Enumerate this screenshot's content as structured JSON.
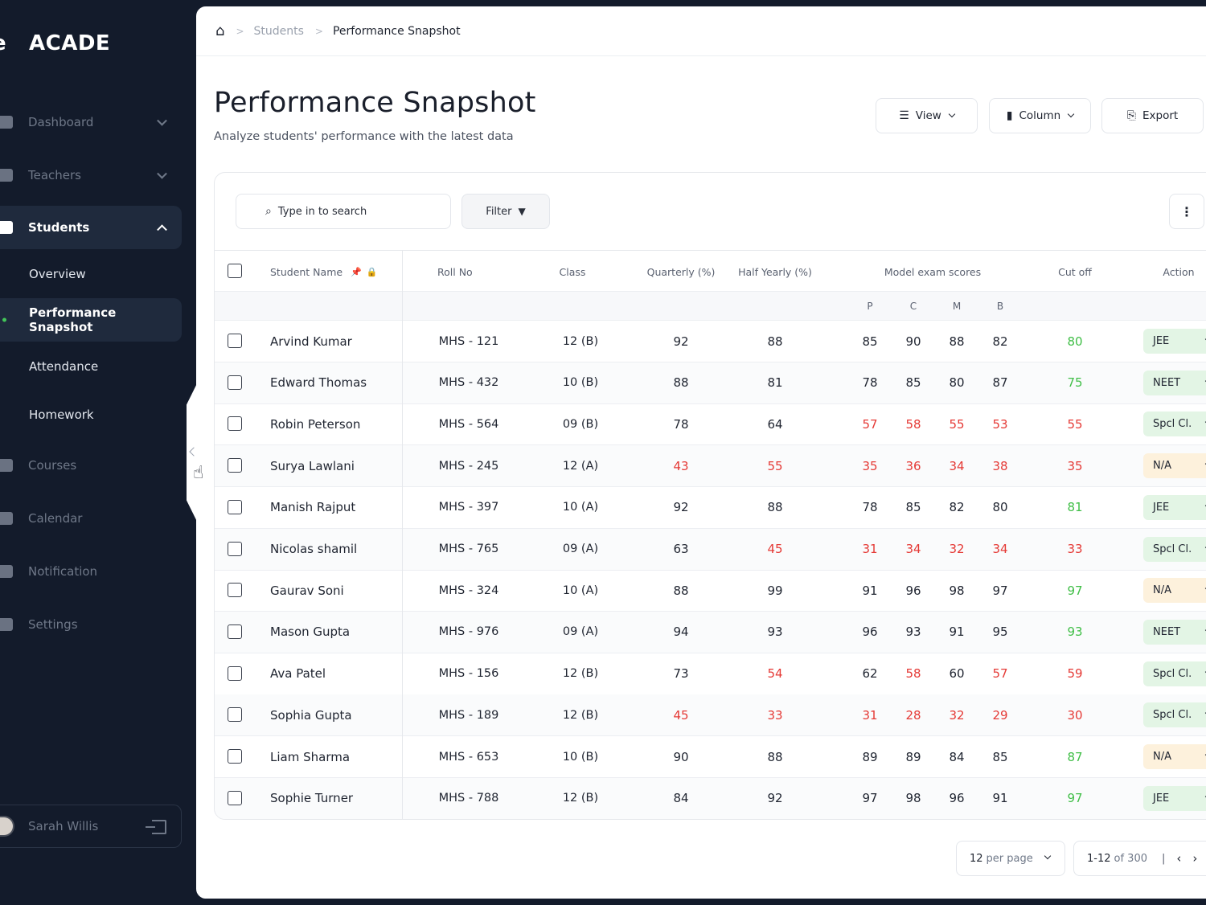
{
  "sidebar": {
    "logo_mark": "e",
    "logo_text": "ACADE",
    "nav": [
      {
        "label": "Dashboard",
        "icon": "dashboard-icon"
      },
      {
        "label": "Teachers",
        "icon": "teachers-icon"
      },
      {
        "label": "Students",
        "icon": "graduation-cap-icon"
      },
      {
        "label": "Courses",
        "icon": "courses-icon"
      },
      {
        "label": "Calendar",
        "icon": "calendar-icon"
      },
      {
        "label": "Notification",
        "icon": "bell-icon"
      },
      {
        "label": "Settings",
        "icon": "gear-icon"
      }
    ],
    "students_sub": [
      "Overview",
      "Performance Snapshot",
      "Attendance",
      "Homework"
    ],
    "user": {
      "name": "Sarah Willis"
    }
  },
  "breadcrumb": {
    "home_icon": "home-icon",
    "parent": "Students",
    "current": "Performance Snapshot"
  },
  "header": {
    "title": "Performance Snapshot",
    "subtitle": "Analyze students' performance with the latest data",
    "view_label": "View",
    "column_label": "Column",
    "export_label": "Export"
  },
  "toolbar": {
    "search_placeholder": "Type in to search",
    "filter_label": "Filter"
  },
  "table": {
    "columns": {
      "name": "Student Name",
      "roll": "Roll No",
      "class": "Class",
      "quarterly": "Quarterly (%)",
      "halfyearly": "Half Yearly (%)",
      "model": "Model exam scores",
      "cutoff": "Cut off",
      "action": "Action"
    },
    "sub_columns": [
      "P",
      "C",
      "M",
      "B"
    ],
    "rows": [
      {
        "name": "Arvind Kumar",
        "roll": "MHS - 121",
        "cls": "12 (B)",
        "q": "92",
        "h": "88",
        "p": "85",
        "c": "90",
        "m": "88",
        "b": "82",
        "cut": "80",
        "action": "JEE"
      },
      {
        "name": "Edward Thomas",
        "roll": "MHS - 432",
        "cls": "10 (B)",
        "q": "88",
        "h": "81",
        "p": "78",
        "c": "85",
        "m": "80",
        "b": "87",
        "cut": "75",
        "action": "NEET"
      },
      {
        "name": "Robin Peterson",
        "roll": "MHS - 564",
        "cls": "09 (B)",
        "q": "78",
        "h": "64",
        "p": "57",
        "c": "58",
        "m": "55",
        "b": "53",
        "cut": "55",
        "action": "Spcl Cl."
      },
      {
        "name": "Surya Lawlani",
        "roll": "MHS - 245",
        "cls": "12 (A)",
        "q": "43",
        "h": "55",
        "p": "35",
        "c": "36",
        "m": "34",
        "b": "38",
        "cut": "35",
        "action": "N/A"
      },
      {
        "name": "Manish Rajput",
        "roll": "MHS - 397",
        "cls": "10 (A)",
        "q": "92",
        "h": "88",
        "p": "78",
        "c": "85",
        "m": "82",
        "b": "80",
        "cut": "81",
        "action": "JEE"
      },
      {
        "name": "Nicolas shamil",
        "roll": "MHS - 765",
        "cls": "09 (A)",
        "q": "63",
        "h": "45",
        "p": "31",
        "c": "34",
        "m": "32",
        "b": "34",
        "cut": "33",
        "action": "Spcl Cl."
      },
      {
        "name": "Gaurav Soni",
        "roll": "MHS - 324",
        "cls": "10 (A)",
        "q": "88",
        "h": "99",
        "p": "91",
        "c": "96",
        "m": "98",
        "b": "97",
        "cut": "97",
        "action": "N/A"
      },
      {
        "name": "Mason Gupta",
        "roll": "MHS - 976",
        "cls": "09 (A)",
        "q": "94",
        "h": "93",
        "p": "96",
        "c": "93",
        "m": "91",
        "b": "95",
        "cut": "93",
        "action": "NEET"
      },
      {
        "name": "Ava Patel",
        "roll": "MHS - 156",
        "cls": "12 (B)",
        "q": "73",
        "h": "54",
        "p": "62",
        "c": "58",
        "m": "60",
        "b": "57",
        "cut": "59",
        "action": "Spcl Cl."
      },
      {
        "name": "Sophia Gupta",
        "roll": "MHS - 189",
        "cls": "12 (B)",
        "q": "45",
        "h": "33",
        "p": "31",
        "c": "28",
        "m": "32",
        "b": "29",
        "cut": "30",
        "action": "Spcl Cl."
      },
      {
        "name": "Liam Sharma",
        "roll": "MHS - 653",
        "cls": "10 (B)",
        "q": "90",
        "h": "88",
        "p": "89",
        "c": "89",
        "m": "84",
        "b": "85",
        "cut": "87",
        "action": "N/A"
      },
      {
        "name": "Sophie Turner",
        "roll": "MHS - 788",
        "cls": "12 (B)",
        "q": "84",
        "h": "92",
        "p": "97",
        "c": "98",
        "m": "96",
        "b": "91",
        "cut": "97",
        "action": "JEE"
      }
    ]
  },
  "pagination": {
    "per_page_value": "12",
    "per_page_suffix": "per page",
    "range": "1-12",
    "of_text": "of 300"
  },
  "colors": {
    "fail": "#e53935",
    "pass": "#3fbe46",
    "pill_green": "#e3f5e5",
    "pill_yellow": "#fdf1dc"
  }
}
